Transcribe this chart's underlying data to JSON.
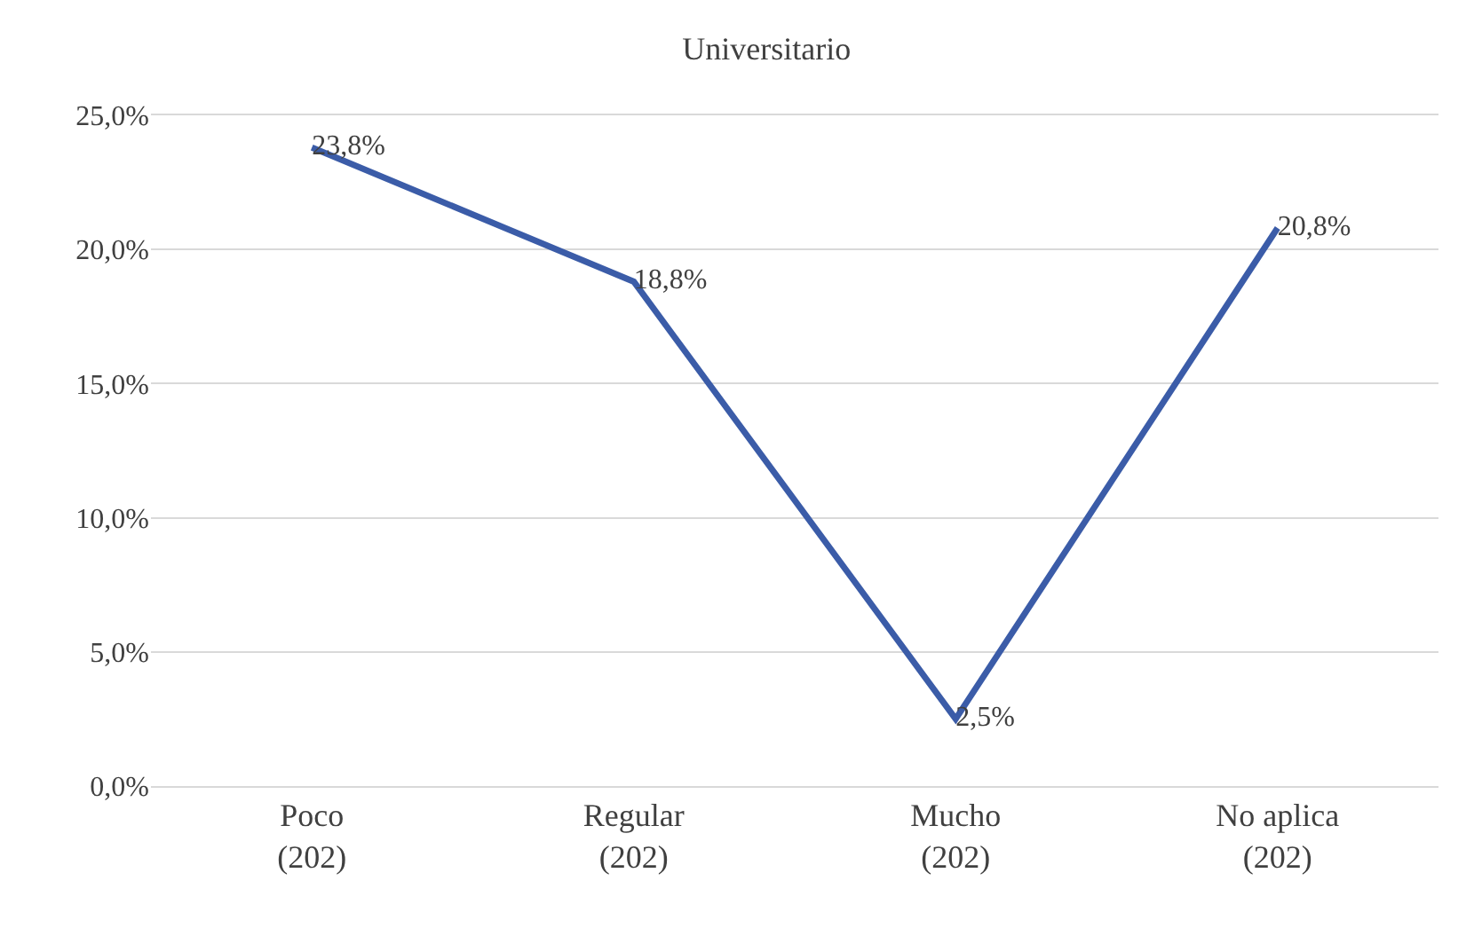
{
  "chart_data": {
    "type": "line",
    "title": "Universitario",
    "categories": [
      "Poco\n(202)",
      "Regular\n(202)",
      "Mucho\n(202)",
      "No aplica\n(202)"
    ],
    "values": [
      23.8,
      18.8,
      2.5,
      20.8
    ],
    "value_labels": [
      "23,8%",
      "18,8%",
      "2,5%",
      "20,8%"
    ],
    "color": "#3b5ca8",
    "ylim": [
      0,
      25
    ],
    "yticks": [
      {
        "value": 0,
        "label": "0,0%"
      },
      {
        "value": 5,
        "label": "5,0%"
      },
      {
        "value": 10,
        "label": "10,0%"
      },
      {
        "value": 15,
        "label": "15,0%"
      },
      {
        "value": 20,
        "label": "20,0%"
      },
      {
        "value": 25,
        "label": "25,0%"
      }
    ],
    "grid": "y",
    "marker": "none",
    "line_style": "solid"
  }
}
